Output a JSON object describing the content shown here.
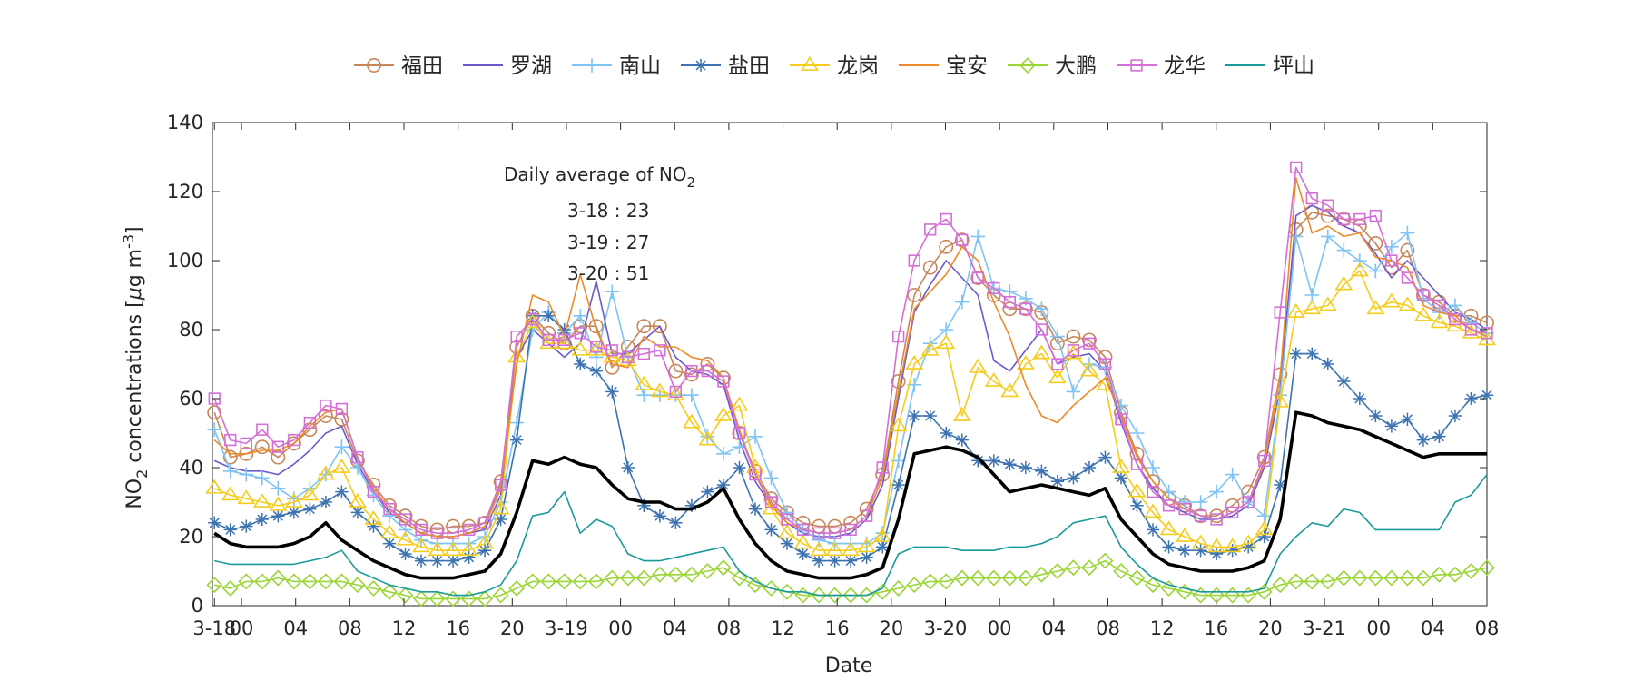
{
  "chart_data": {
    "type": "line",
    "title": "",
    "xlabel": "Date",
    "ylabel": "NO2 concentrations [μg m-3]",
    "ylabel_parts": {
      "a": "NO",
      "sub": "2",
      "b": " concentrations [",
      "mu": "μ",
      "c": "g m",
      "sup": "-3",
      "d": "]"
    },
    "ylim": [
      0,
      140
    ],
    "yticks": [
      0,
      20,
      40,
      60,
      80,
      100,
      120,
      140
    ],
    "xlim": [
      -0.5,
      84.6
    ],
    "xtick_positions": [
      0,
      1,
      5,
      9,
      13,
      17,
      21,
      25,
      28,
      29,
      33,
      37,
      41,
      45,
      49,
      53,
      56,
      57,
      61,
      65,
      69,
      73,
      77,
      81,
      84,
      85,
      89
    ],
    "xtick_labels_note": "x values are hours after 3-18 22:00",
    "xticks": [
      {
        "x": 0,
        "label": "3-18"
      },
      {
        "x": 2,
        "label": "00"
      },
      {
        "x": 6,
        "label": "04"
      },
      {
        "x": 10,
        "label": "08"
      },
      {
        "x": 14,
        "label": "12"
      },
      {
        "x": 18,
        "label": "16"
      },
      {
        "x": 22,
        "label": "20"
      },
      {
        "x": 26,
        "label": "3-19"
      },
      {
        "x": 30,
        "label": "00"
      },
      {
        "x": 34,
        "label": "04"
      },
      {
        "x": 38,
        "label": "08"
      },
      {
        "x": 42,
        "label": "12"
      },
      {
        "x": 46,
        "label": "16"
      },
      {
        "x": 50,
        "label": "20"
      },
      {
        "x": 54,
        "label": "3-20"
      },
      {
        "x": 58,
        "label": "00"
      },
      {
        "x": 62,
        "label": "04"
      },
      {
        "x": 66,
        "label": "08"
      },
      {
        "x": 70,
        "label": "12"
      },
      {
        "x": 74,
        "label": "16"
      },
      {
        "x": 78,
        "label": "20"
      },
      {
        "x": 82,
        "label": "3-21"
      },
      {
        "x": 86,
        "label": "00"
      },
      {
        "x": 90,
        "label": "04"
      },
      {
        "x": 94,
        "label": "08"
      }
    ],
    "grid": false,
    "legend": {
      "placement": "top-center-outside",
      "orientation": "horizontal"
    },
    "annotation": {
      "title_a": "Daily average of NO",
      "title_sub": "2",
      "lines": [
        "3-18 : 23",
        "3-19 : 27",
        "3-20 : 51"
      ]
    },
    "series": [
      {
        "name": "福田",
        "color": "#c8875a",
        "marker": "circle",
        "values": [
          56,
          43,
          44,
          46,
          43,
          47,
          51,
          55,
          54,
          42,
          35,
          29,
          26,
          23,
          22,
          23,
          23,
          24,
          36,
          75,
          84,
          79,
          76,
          81,
          81,
          69,
          75,
          81,
          81,
          68,
          67,
          70,
          66,
          50,
          39,
          31,
          27,
          24,
          23,
          23,
          24,
          28,
          38,
          65,
          90,
          98,
          104,
          106,
          95,
          90,
          86,
          86,
          85,
          76,
          78,
          77,
          72,
          56,
          44,
          36,
          31,
          29,
          26,
          26,
          29,
          33,
          43,
          67,
          109,
          114,
          113,
          112,
          110,
          105,
          98,
          103,
          90,
          88,
          84,
          84,
          82
        ]
      },
      {
        "name": "罗湖",
        "color": "#6a5acd",
        "marker": "none",
        "values": [
          42,
          40,
          39,
          39,
          38,
          41,
          45,
          50,
          52,
          41,
          33,
          27,
          24,
          21,
          20,
          20,
          21,
          22,
          32,
          72,
          80,
          76,
          72,
          76,
          94,
          73,
          73,
          77,
          81,
          72,
          68,
          67,
          64,
          48,
          36,
          29,
          24,
          21,
          20,
          20,
          21,
          25,
          35,
          60,
          85,
          93,
          100,
          95,
          90,
          71,
          68,
          74,
          80,
          70,
          72,
          73,
          68,
          53,
          41,
          34,
          29,
          27,
          25,
          25,
          26,
          29,
          40,
          63,
          113,
          116,
          114,
          110,
          108,
          102,
          95,
          100,
          95,
          90,
          85,
          83,
          80
        ]
      },
      {
        "name": "南山",
        "color": "#7fc4f4",
        "marker": "plus",
        "values": [
          51,
          39,
          38,
          37,
          34,
          31,
          34,
          38,
          46,
          40,
          32,
          26,
          22,
          19,
          18,
          18,
          18,
          20,
          30,
          53,
          80,
          85,
          79,
          84,
          72,
          91,
          72,
          61,
          61,
          61,
          61,
          49,
          44,
          46,
          49,
          37,
          27,
          22,
          19,
          18,
          18,
          18,
          21,
          42,
          64,
          76,
          80,
          88,
          107,
          92,
          91,
          89,
          86,
          78,
          62,
          70,
          69,
          58,
          50,
          40,
          33,
          30,
          30,
          33,
          38,
          30,
          26,
          61,
          107,
          90,
          107,
          103,
          100,
          97,
          104,
          108,
          89,
          85,
          87,
          82,
          79
        ]
      },
      {
        "name": "盐田",
        "color": "#3c73b0",
        "marker": "asterisk",
        "values": [
          24,
          22,
          23,
          25,
          26,
          27,
          28,
          30,
          33,
          27,
          23,
          18,
          15,
          13,
          13,
          13,
          14,
          16,
          25,
          48,
          84,
          84,
          80,
          70,
          68,
          62,
          40,
          29,
          26,
          24,
          29,
          33,
          35,
          40,
          28,
          22,
          18,
          15,
          13,
          13,
          13,
          14,
          17,
          35,
          55,
          55,
          50,
          48,
          42,
          42,
          41,
          40,
          39,
          36,
          37,
          40,
          43,
          37,
          29,
          22,
          17,
          16,
          16,
          15,
          16,
          17,
          20,
          35,
          73,
          73,
          70,
          65,
          60,
          55,
          52,
          54,
          48,
          49,
          55,
          60,
          61
        ]
      },
      {
        "name": "龙岗",
        "color": "#f5cc1a",
        "marker": "triangle",
        "values": [
          34,
          32,
          31,
          30,
          29,
          30,
          32,
          38,
          40,
          30,
          25,
          21,
          19,
          17,
          16,
          16,
          16,
          18,
          28,
          72,
          82,
          76,
          76,
          74,
          74,
          72,
          71,
          64,
          62,
          61,
          53,
          48,
          55,
          58,
          40,
          28,
          21,
          18,
          16,
          16,
          16,
          17,
          20,
          52,
          70,
          74,
          76,
          55,
          69,
          65,
          62,
          70,
          73,
          66,
          73,
          68,
          64,
          40,
          33,
          27,
          22,
          20,
          18,
          17,
          17,
          18,
          22,
          59,
          85,
          86,
          87,
          93,
          97,
          86,
          88,
          87,
          84,
          82,
          81,
          79,
          77
        ]
      },
      {
        "name": "宝安",
        "color": "#ee8a2a",
        "marker": "none",
        "values": [
          48,
          44,
          44,
          45,
          45,
          47,
          52,
          56,
          57,
          43,
          34,
          28,
          24,
          21,
          20,
          20,
          21,
          23,
          34,
          70,
          90,
          88,
          78,
          96,
          80,
          70,
          69,
          78,
          75,
          75,
          72,
          71,
          66,
          51,
          38,
          29,
          24,
          22,
          21,
          21,
          22,
          26,
          37,
          62,
          86,
          91,
          96,
          104,
          100,
          88,
          78,
          64,
          55,
          53,
          58,
          62,
          66,
          55,
          43,
          36,
          31,
          28,
          26,
          25,
          27,
          30,
          41,
          66,
          124,
          108,
          110,
          107,
          108,
          101,
          100,
          98,
          87,
          85,
          84,
          80,
          78
        ]
      },
      {
        "name": "大鹏",
        "color": "#9bd535",
        "marker": "diamond",
        "values": [
          6,
          5,
          7,
          7,
          8,
          7,
          7,
          7,
          7,
          6,
          5,
          4,
          3,
          2,
          2,
          2,
          2,
          2,
          3,
          5,
          7,
          7,
          7,
          7,
          7,
          8,
          8,
          8,
          9,
          9,
          9,
          10,
          11,
          8,
          6,
          5,
          4,
          3,
          3,
          3,
          3,
          3,
          4,
          5,
          6,
          7,
          7,
          8,
          8,
          8,
          8,
          8,
          9,
          10,
          11,
          11,
          13,
          10,
          8,
          6,
          5,
          4,
          3,
          3,
          3,
          3,
          4,
          6,
          7,
          7,
          7,
          8,
          8,
          8,
          8,
          8,
          8,
          9,
          9,
          10,
          11
        ]
      },
      {
        "name": "龙华",
        "color": "#d46fd8",
        "marker": "square",
        "values": [
          60,
          48,
          47,
          51,
          46,
          48,
          53,
          58,
          57,
          43,
          33,
          28,
          25,
          22,
          21,
          21,
          22,
          24,
          35,
          78,
          83,
          77,
          77,
          79,
          75,
          74,
          72,
          73,
          74,
          62,
          68,
          68,
          65,
          50,
          38,
          30,
          25,
          22,
          21,
          21,
          22,
          26,
          40,
          78,
          100,
          109,
          112,
          106,
          95,
          92,
          88,
          86,
          80,
          70,
          74,
          76,
          70,
          54,
          41,
          33,
          29,
          28,
          26,
          25,
          27,
          30,
          42,
          85,
          127,
          118,
          116,
          112,
          112,
          113,
          100,
          95,
          90,
          87,
          83,
          80,
          79
        ]
      },
      {
        "name": "坪山",
        "color": "#1a9a9a",
        "marker": "none",
        "values": [
          13,
          12,
          12,
          12,
          12,
          12,
          13,
          14,
          16,
          10,
          8,
          6,
          5,
          4,
          4,
          3,
          3,
          4,
          6,
          13,
          26,
          27,
          33,
          21,
          25,
          23,
          15,
          13,
          13,
          14,
          15,
          16,
          17,
          10,
          7,
          5,
          4,
          4,
          3,
          3,
          3,
          3,
          5,
          15,
          17,
          17,
          17,
          16,
          16,
          16,
          17,
          17,
          18,
          20,
          24,
          25,
          26,
          17,
          12,
          8,
          6,
          5,
          4,
          4,
          4,
          4,
          5,
          15,
          20,
          24,
          23,
          28,
          27,
          22,
          22,
          22,
          22,
          22,
          30,
          32,
          38
        ]
      },
      {
        "name": "",
        "color": "#000000",
        "marker": "none",
        "bold": true,
        "values": [
          21,
          18,
          17,
          17,
          17,
          18,
          20,
          24,
          19,
          16,
          13,
          11,
          9,
          8,
          8,
          8,
          9,
          10,
          15,
          27,
          42,
          41,
          43,
          41,
          40,
          35,
          31,
          30,
          30,
          28,
          28,
          30,
          34,
          25,
          18,
          13,
          10,
          9,
          8,
          8,
          8,
          9,
          11,
          25,
          44,
          45,
          46,
          45,
          43,
          38,
          33,
          34,
          35,
          34,
          33,
          32,
          34,
          25,
          20,
          15,
          12,
          11,
          10,
          10,
          10,
          11,
          13,
          25,
          56,
          55,
          53,
          52,
          51,
          49,
          47,
          45,
          43,
          44,
          44,
          44,
          44
        ]
      }
    ]
  }
}
